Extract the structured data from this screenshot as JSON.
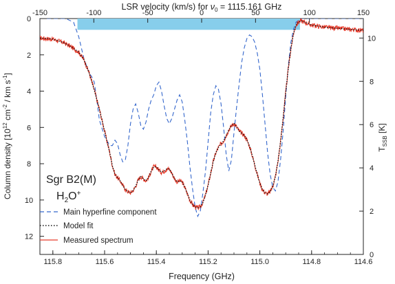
{
  "chart_data": {
    "type": "line",
    "title": "",
    "top_axis": {
      "label_prefix": "LSR velocity (km/s) for ",
      "label_symbol": "ν",
      "label_sub": "0",
      "label_suffix": " = 1115.161 GHz",
      "range": [
        -150,
        150
      ],
      "ticks": [
        "-150",
        "-100",
        "-50",
        "0",
        "50",
        "100",
        "150"
      ]
    },
    "x_axis": {
      "label": "Frequency (GHz)",
      "range": [
        115.85,
        114.6
      ],
      "ticks": [
        "115.8",
        "115.6",
        "115.4",
        "115.2",
        "115.0",
        "114.8",
        "114.6"
      ]
    },
    "left_axis": {
      "label_prefix": "Column density [10",
      "label_sup1": "12",
      "label_mid": " cm",
      "label_sup2": "-2",
      "label_mid2": " / km s",
      "label_sup3": "-1",
      "label_suffix": "]",
      "range": [
        0,
        13
      ],
      "inverted": true,
      "ticks": [
        "0",
        "2",
        "4",
        "6",
        "8",
        "10",
        "12"
      ]
    },
    "right_axis": {
      "label_main": "T",
      "label_sub": "SSB",
      "label_unit": " [K]",
      "range": [
        0,
        10.9
      ],
      "ticks": [
        "0",
        "2",
        "4",
        "6",
        "8",
        "10"
      ]
    },
    "annotation": {
      "line1": "Sgr B2(M)",
      "line2_base": "H",
      "line2_sub": "2",
      "line2_mid": "O",
      "line2_sup": "+"
    },
    "highlight_band": {
      "x_range": [
        115.705,
        114.845
      ],
      "y_range": [
        -0.18,
        0.62
      ],
      "color": "#87ceeb"
    },
    "legend": {
      "position": "bottom-left",
      "entries": [
        {
          "label": "Main hyperfine component",
          "style": "dashed",
          "color": "#3366cc"
        },
        {
          "label": "Model fit",
          "style": "dotted",
          "color": "#111111"
        },
        {
          "label": "Measured spectrum",
          "style": "solid",
          "color": "#e83a2a"
        }
      ]
    },
    "series": [
      {
        "name": "Main hyperfine component",
        "color": "#3366cc",
        "axis": "left",
        "x": [
          115.85,
          115.75,
          115.72,
          115.7,
          115.68,
          115.66,
          115.65,
          115.64,
          115.63,
          115.62,
          115.6,
          115.58,
          115.57,
          115.56,
          115.55,
          115.54,
          115.53,
          115.52,
          115.51,
          115.5,
          115.49,
          115.48,
          115.47,
          115.46,
          115.45,
          115.44,
          115.43,
          115.42,
          115.41,
          115.4,
          115.39,
          115.38,
          115.37,
          115.36,
          115.35,
          115.34,
          115.33,
          115.32,
          115.31,
          115.3,
          115.29,
          115.28,
          115.27,
          115.26,
          115.25,
          115.24,
          115.23,
          115.22,
          115.21,
          115.2,
          115.19,
          115.18,
          115.17,
          115.16,
          115.15,
          115.14,
          115.13,
          115.12,
          115.11,
          115.1,
          115.09,
          115.08,
          115.07,
          115.06,
          115.05,
          115.04,
          115.03,
          115.02,
          115.01,
          115.0,
          114.99,
          114.98,
          114.97,
          114.96,
          114.95,
          114.94,
          114.93,
          114.92,
          114.91,
          114.9,
          114.89,
          114.88,
          114.87,
          114.86,
          114.84,
          114.82,
          114.8,
          114.7,
          114.6
        ],
        "y": [
          0.0,
          0.0,
          0.2,
          1.0,
          2.2,
          3.0,
          3.2,
          3.5,
          4.5,
          5.6,
          6.5,
          7.0,
          7.0,
          6.7,
          6.9,
          7.5,
          7.9,
          7.8,
          7.0,
          5.8,
          5.0,
          4.7,
          5.2,
          5.9,
          6.1,
          5.7,
          5.0,
          4.5,
          4.2,
          3.7,
          3.5,
          4.0,
          4.8,
          5.5,
          5.8,
          5.5,
          5.0,
          4.5,
          4.2,
          4.6,
          5.6,
          6.8,
          8.2,
          9.4,
          10.4,
          10.9,
          10.6,
          9.6,
          8.4,
          6.8,
          5.2,
          4.2,
          3.7,
          3.9,
          4.7,
          6.0,
          7.5,
          8.4,
          7.8,
          6.3,
          4.9,
          3.6,
          2.4,
          1.6,
          1.1,
          0.9,
          1.0,
          1.3,
          1.9,
          2.8,
          4.2,
          5.8,
          7.4,
          8.6,
          9.3,
          9.5,
          9.0,
          7.8,
          6.2,
          4.3,
          2.6,
          1.3,
          0.6,
          0.2,
          0.0,
          0.0,
          0.0,
          0.0,
          0.0
        ]
      },
      {
        "name": "Model fit",
        "color": "#111111",
        "axis": "right",
        "x": [
          115.85,
          115.8,
          115.76,
          115.73,
          115.7,
          115.68,
          115.66,
          115.64,
          115.62,
          115.6,
          115.58,
          115.57,
          115.56,
          115.55,
          115.54,
          115.53,
          115.52,
          115.51,
          115.5,
          115.49,
          115.48,
          115.47,
          115.46,
          115.45,
          115.44,
          115.43,
          115.42,
          115.41,
          115.4,
          115.39,
          115.38,
          115.37,
          115.36,
          115.35,
          115.34,
          115.33,
          115.32,
          115.31,
          115.3,
          115.29,
          115.28,
          115.27,
          115.26,
          115.25,
          115.24,
          115.23,
          115.22,
          115.21,
          115.2,
          115.19,
          115.18,
          115.17,
          115.16,
          115.15,
          115.14,
          115.13,
          115.12,
          115.11,
          115.1,
          115.09,
          115.08,
          115.07,
          115.06,
          115.05,
          115.04,
          115.03,
          115.02,
          115.01,
          115.0,
          114.99,
          114.98,
          114.97,
          114.96,
          114.95,
          114.94,
          114.93,
          114.92,
          114.91,
          114.9,
          114.89,
          114.88,
          114.87,
          114.86,
          114.85,
          114.84,
          114.83,
          114.82,
          114.8,
          114.75,
          114.7,
          114.65,
          114.6
        ],
        "y": [
          10.0,
          9.95,
          9.8,
          9.6,
          9.35,
          9.0,
          8.4,
          7.6,
          6.7,
          5.7,
          4.7,
          4.1,
          3.7,
          3.55,
          3.4,
          3.2,
          3.0,
          2.9,
          2.85,
          2.95,
          3.15,
          3.45,
          3.6,
          3.5,
          3.4,
          3.55,
          3.85,
          4.05,
          4.05,
          3.9,
          3.8,
          3.85,
          3.95,
          3.95,
          3.75,
          3.5,
          3.35,
          3.4,
          3.35,
          3.1,
          2.8,
          2.5,
          2.3,
          2.2,
          2.15,
          2.2,
          2.4,
          2.75,
          3.2,
          3.75,
          4.3,
          4.7,
          4.95,
          5.1,
          5.25,
          5.5,
          5.75,
          5.95,
          6.05,
          5.9,
          5.7,
          5.6,
          5.5,
          5.3,
          5.0,
          4.6,
          4.15,
          3.7,
          3.3,
          3.0,
          2.85,
          2.8,
          2.9,
          3.15,
          3.6,
          4.3,
          5.2,
          6.3,
          7.5,
          8.6,
          9.5,
          10.2,
          10.6,
          10.75,
          10.8,
          10.75,
          10.7,
          10.6,
          10.5,
          10.45,
          10.4,
          10.35
        ]
      },
      {
        "name": "Measured spectrum",
        "color": "#e83a2a",
        "axis": "right",
        "noisy": true,
        "x": [
          115.85,
          115.8,
          115.76,
          115.73,
          115.7,
          115.68,
          115.66,
          115.64,
          115.62,
          115.6,
          115.58,
          115.57,
          115.56,
          115.55,
          115.54,
          115.53,
          115.52,
          115.51,
          115.5,
          115.49,
          115.48,
          115.47,
          115.46,
          115.45,
          115.44,
          115.43,
          115.42,
          115.41,
          115.4,
          115.39,
          115.38,
          115.37,
          115.36,
          115.35,
          115.34,
          115.33,
          115.32,
          115.31,
          115.3,
          115.29,
          115.28,
          115.27,
          115.26,
          115.25,
          115.24,
          115.23,
          115.22,
          115.21,
          115.2,
          115.19,
          115.18,
          115.17,
          115.16,
          115.15,
          115.14,
          115.13,
          115.12,
          115.11,
          115.1,
          115.09,
          115.08,
          115.07,
          115.06,
          115.05,
          115.04,
          115.03,
          115.02,
          115.01,
          115.0,
          114.99,
          114.98,
          114.97,
          114.96,
          114.95,
          114.94,
          114.93,
          114.92,
          114.91,
          114.9,
          114.89,
          114.88,
          114.87,
          114.86,
          114.85,
          114.84,
          114.83,
          114.82,
          114.8,
          114.75,
          114.7,
          114.65,
          114.6
        ],
        "y": [
          10.0,
          9.95,
          9.8,
          9.6,
          9.35,
          9.0,
          8.4,
          7.6,
          6.7,
          5.7,
          4.7,
          4.1,
          3.7,
          3.55,
          3.4,
          3.2,
          3.0,
          2.9,
          2.85,
          2.95,
          3.15,
          3.45,
          3.6,
          3.5,
          3.4,
          3.55,
          3.85,
          4.05,
          4.05,
          3.9,
          3.8,
          3.85,
          3.95,
          3.95,
          3.75,
          3.5,
          3.35,
          3.4,
          3.35,
          3.1,
          2.8,
          2.5,
          2.3,
          2.2,
          2.15,
          2.2,
          2.4,
          2.75,
          3.2,
          3.75,
          4.3,
          4.7,
          4.95,
          5.1,
          5.25,
          5.5,
          5.75,
          5.95,
          6.05,
          5.9,
          5.7,
          5.6,
          5.5,
          5.3,
          5.0,
          4.6,
          4.15,
          3.7,
          3.3,
          3.0,
          2.85,
          2.8,
          2.9,
          3.15,
          3.6,
          4.3,
          5.2,
          6.3,
          7.5,
          8.6,
          9.5,
          10.2,
          10.6,
          10.75,
          10.8,
          10.75,
          10.7,
          10.6,
          10.5,
          10.45,
          10.4,
          10.35
        ]
      }
    ]
  }
}
